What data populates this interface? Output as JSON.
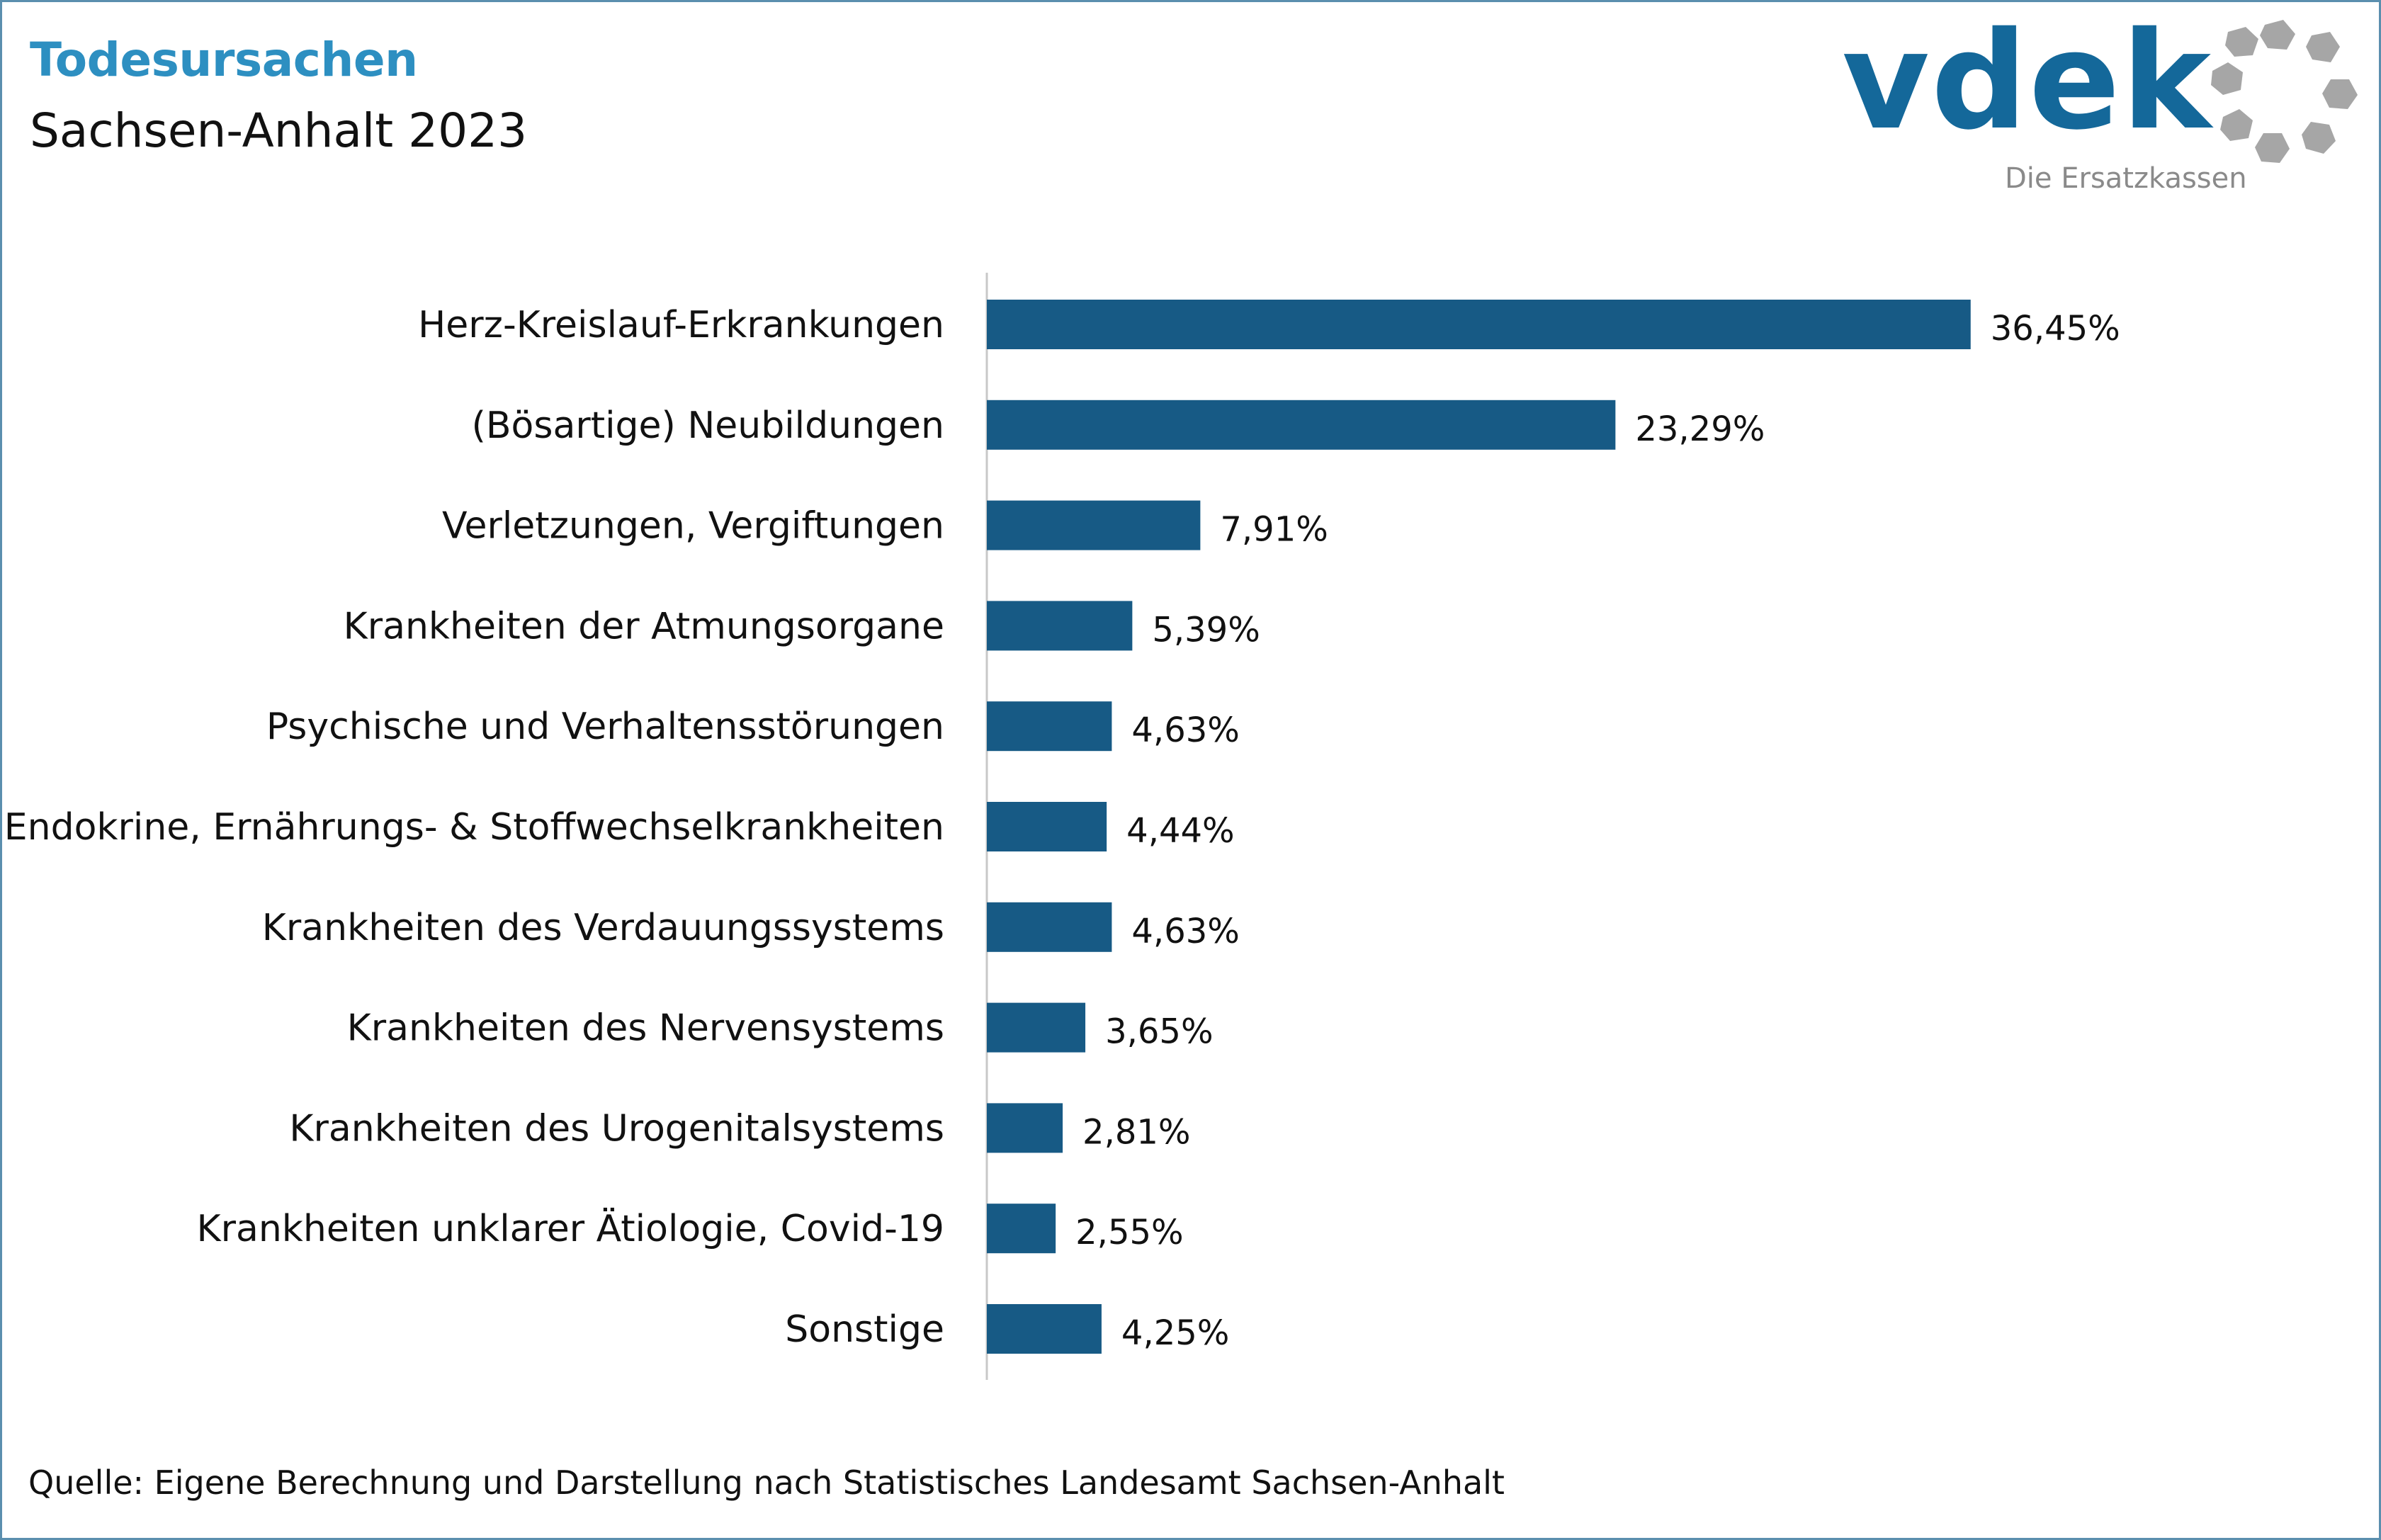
{
  "header": {
    "title": "Todesursachen",
    "subtitle": "Sachsen-Anhalt 2023"
  },
  "logo": {
    "wordmark": "vdek",
    "tagline": "Die Ersatzkassen",
    "wordmark_color": "#14689a",
    "tagline_color": "#8a8a8a",
    "ring_color": "#a6a6a6"
  },
  "footer": {
    "source": "Quelle: Eigene Berechnung und Darstellung nach Statistisches Landesamt Sachsen-Anhalt"
  },
  "colors": {
    "bar": "#175a85",
    "title": "#2d8fc1",
    "axis": "#c8c8c8"
  },
  "chart_data": {
    "type": "bar",
    "orientation": "horizontal",
    "categories": [
      "Herz-Kreislauf-Erkrankungen",
      "(Bösartige) Neubildungen",
      "Verletzungen, Vergiftungen",
      "Krankheiten der Atmungsorgane",
      "Psychische und Verhaltensstörungen",
      "Endokrine, Ernährungs- & Stoffwechselkrankheiten",
      "Krankheiten des Verdauungssystems",
      "Krankheiten des Nervensystems",
      "Krankheiten des Urogenitalsystems",
      "Krankheiten unklarer Ätiologie, Covid-19",
      "Sonstige"
    ],
    "values": [
      36.45,
      23.29,
      7.91,
      5.39,
      4.63,
      4.44,
      4.63,
      3.65,
      2.81,
      2.55,
      4.25
    ],
    "value_labels": [
      "36,45%",
      "23,29%",
      "7,91%",
      "5,39%",
      "4,63%",
      "4,44%",
      "4,63%",
      "3,65%",
      "2,81%",
      "2,55%",
      "4,25%"
    ],
    "unit": "%",
    "xlim": [
      0,
      40
    ],
    "grid": false,
    "legend": "none"
  }
}
